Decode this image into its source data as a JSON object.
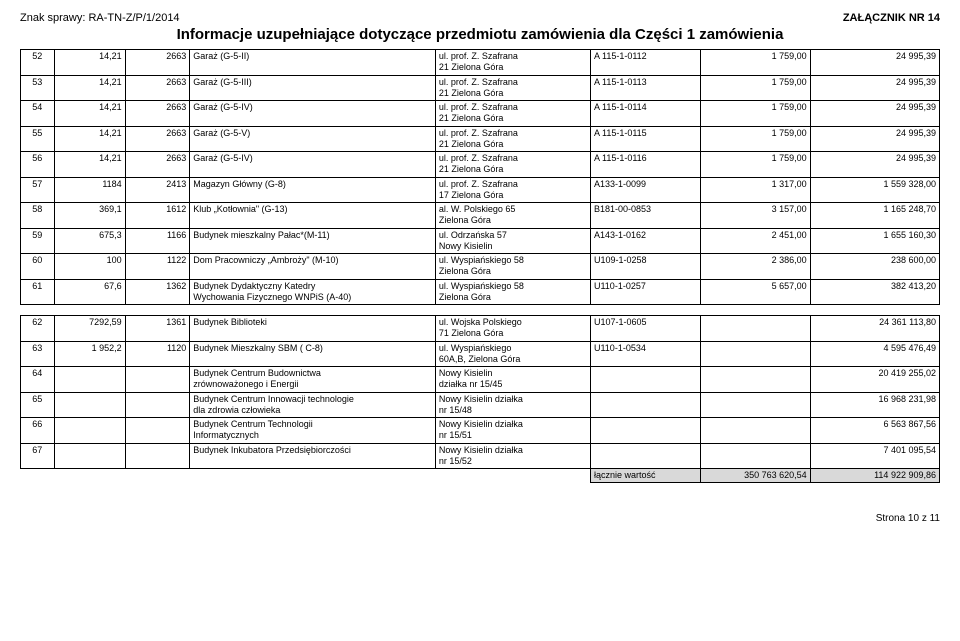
{
  "header": {
    "case_number": "Znak sprawy: RA-TN-Z/P/1/2014",
    "attachment": "ZAŁĄCZNIK NR 14",
    "title": "Informacje uzupełniające dotyczące przedmiotu zamówienia dla Części 1 zamówienia"
  },
  "table1_rows": [
    {
      "n": "52",
      "a": "14,21",
      "b": "2663",
      "desc": "Garaż (G-5-II)",
      "addr": "ul. prof. Z. Szafrana\n21 Zielona Góra",
      "code": "A 115-1-0112",
      "v1": "1 759,00",
      "v2": "24 995,39"
    },
    {
      "n": "53",
      "a": "14,21",
      "b": "2663",
      "desc": "Garaż (G-5-III)",
      "addr": "ul. prof. Z. Szafrana\n21 Zielona Góra",
      "code": "A 115-1-0113",
      "v1": "1 759,00",
      "v2": "24 995,39"
    },
    {
      "n": "54",
      "a": "14,21",
      "b": "2663",
      "desc": "Garaż (G-5-IV)",
      "addr": "ul. prof. Z. Szafrana\n21 Zielona Góra",
      "code": "A 115-1-0114",
      "v1": "1 759,00",
      "v2": "24 995,39"
    },
    {
      "n": "55",
      "a": "14,21",
      "b": "2663",
      "desc": "Garaż (G-5-V)",
      "addr": "ul. prof. Z. Szafrana\n21 Zielona Góra",
      "code": "A 115-1-0115",
      "v1": "1 759,00",
      "v2": "24 995,39"
    },
    {
      "n": "56",
      "a": "14,21",
      "b": "2663",
      "desc": "Garaż (G-5-IV)",
      "addr": "ul. prof. Z. Szafrana\n21 Zielona Góra",
      "code": "A 115-1-0116",
      "v1": "1 759,00",
      "v2": "24 995,39"
    },
    {
      "n": "57",
      "a": "1184",
      "b": "2413",
      "desc": "Magazyn Główny (G-8)",
      "addr": "ul. prof. Z. Szafrana\n17 Zielona Góra",
      "code": "A133-1-0099",
      "v1": "1 317,00",
      "v2": "1 559 328,00"
    },
    {
      "n": "58",
      "a": "369,1",
      "b": "1612",
      "desc": "Klub „Kotłownia\" (G-13)",
      "addr": "al. W. Polskiego 65\nZielona Góra",
      "code": "B181-00-0853",
      "v1": "3 157,00",
      "v2": "1 165 248,70"
    },
    {
      "n": "59",
      "a": "675,3",
      "b": "1166",
      "desc": "Budynek mieszkalny Pałac*(M-11)",
      "addr": "ul. Odrzańska 57\nNowy Kisielin",
      "code": "A143-1-0162",
      "v1": "2 451,00",
      "v2": "1 655 160,30"
    },
    {
      "n": "60",
      "a": "100",
      "b": "1122",
      "desc": "Dom Pracowniczy „Ambroży\" (M-10)",
      "addr": "ul. Wyspiańskiego 58\nZielona Góra",
      "code": "U109-1-0258",
      "v1": "2 386,00",
      "v2": "238 600,00"
    },
    {
      "n": "61",
      "a": "67,6",
      "b": "1362",
      "desc": "Budynek Dydaktyczny Katedry\nWychowania Fizycznego WNPiS (A-40)",
      "addr": "ul. Wyspiańskiego 58\nZielona Góra",
      "code": "U110-1-0257",
      "v1": "5 657,00",
      "v2": "382 413,20"
    }
  ],
  "table2_rows": [
    {
      "n": "62",
      "a": "7292,59",
      "b": "1361",
      "desc": "Budynek Biblioteki",
      "addr": "ul. Wojska Polskiego\n71 Zielona Góra",
      "code": "U107-1-0605",
      "v1": "",
      "v2": "24 361 113,80"
    },
    {
      "n": "63",
      "a": "1 952,2",
      "b": "1120",
      "desc": "Budynek Mieszkalny SBM ( C-8)",
      "addr": "ul. Wyspiańskiego\n60A,B, Zielona Góra",
      "code": "U110-1-0534",
      "v1": "",
      "v2": "4 595 476,49"
    },
    {
      "n": "64",
      "a": "",
      "b": "",
      "desc": "Budynek Centrum Budownictwa\nzrównoważonego i Energii",
      "addr": "Nowy Kisielin\ndziałka nr 15/45",
      "code": "",
      "v1": "",
      "v2": "20 419 255,02"
    },
    {
      "n": "65",
      "a": "",
      "b": "",
      "desc": "Budynek Centrum Innowacji technologie\ndla zdrowia człowieka",
      "addr": "Nowy Kisielin działka\nnr 15/48",
      "code": "",
      "v1": "",
      "v2": "16 968 231,98"
    },
    {
      "n": "66",
      "a": "",
      "b": "",
      "desc": "Budynek Centrum Technologii\nInformatycznych",
      "addr": "Nowy Kisielin działka\nnr 15/51",
      "code": "",
      "v1": "",
      "v2": "6 563 867,56"
    },
    {
      "n": "67",
      "a": "",
      "b": "",
      "desc": "Budynek Inkubatora Przedsiębiorczości",
      "addr": "Nowy Kisielin działka\nnr 15/52",
      "code": "",
      "v1": "",
      "v2": "7 401 095,54"
    }
  ],
  "total_row": {
    "label": "łącznie wartość",
    "v1": "350 763 620,54",
    "v2": "114 922 909,86"
  },
  "footer": "Strona 10 z 11"
}
